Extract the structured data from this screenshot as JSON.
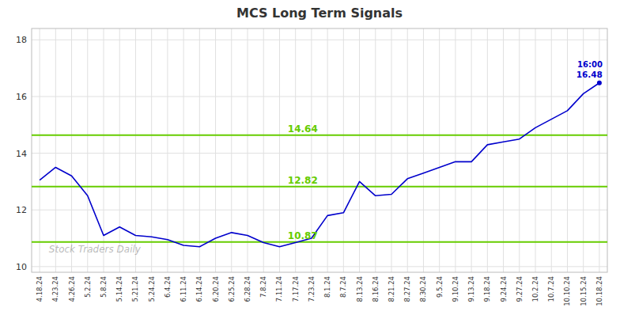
{
  "chart_data": {
    "type": "line",
    "title": "MCS Long Term Signals",
    "categories": [
      "4.18.24",
      "4.23.24",
      "4.26.24",
      "5.2.24",
      "5.8.24",
      "5.14.24",
      "5.21.24",
      "5.24.24",
      "6.4.24",
      "6.11.24",
      "6.14.24",
      "6.20.24",
      "6.25.24",
      "6.28.24",
      "7.8.24",
      "7.11.24",
      "7.17.24",
      "7.23.24",
      "8.1.24",
      "8.7.24",
      "8.13.24",
      "8.16.24",
      "8.21.24",
      "8.27.24",
      "8.30.24",
      "9.5.24",
      "9.10.24",
      "9.13.24",
      "9.18.24",
      "9.24.24",
      "9.27.24",
      "10.2.24",
      "10.7.24",
      "10.10.24",
      "10.15.24",
      "10.18.24"
    ],
    "values": [
      13.05,
      13.5,
      13.2,
      12.5,
      11.1,
      11.4,
      11.1,
      11.05,
      10.95,
      10.75,
      10.7,
      11.0,
      11.2,
      11.1,
      10.85,
      10.7,
      10.85,
      11.0,
      11.8,
      11.9,
      13.0,
      12.5,
      12.55,
      13.1,
      13.3,
      13.5,
      13.7,
      13.7,
      14.3,
      14.4,
      14.5,
      14.9,
      15.2,
      15.5,
      16.1,
      16.48
    ],
    "color": "#0000CC",
    "hlines": {
      "values": [
        10.87,
        12.82,
        14.64
      ],
      "color": "#66CC00"
    },
    "annotations": [
      "16:00",
      "16.48"
    ],
    "watermark": "Stock Traders Daily",
    "ylim": [
      9.8,
      18.4
    ],
    "yticks": [
      10,
      12,
      14,
      16,
      18
    ],
    "grid": true
  }
}
